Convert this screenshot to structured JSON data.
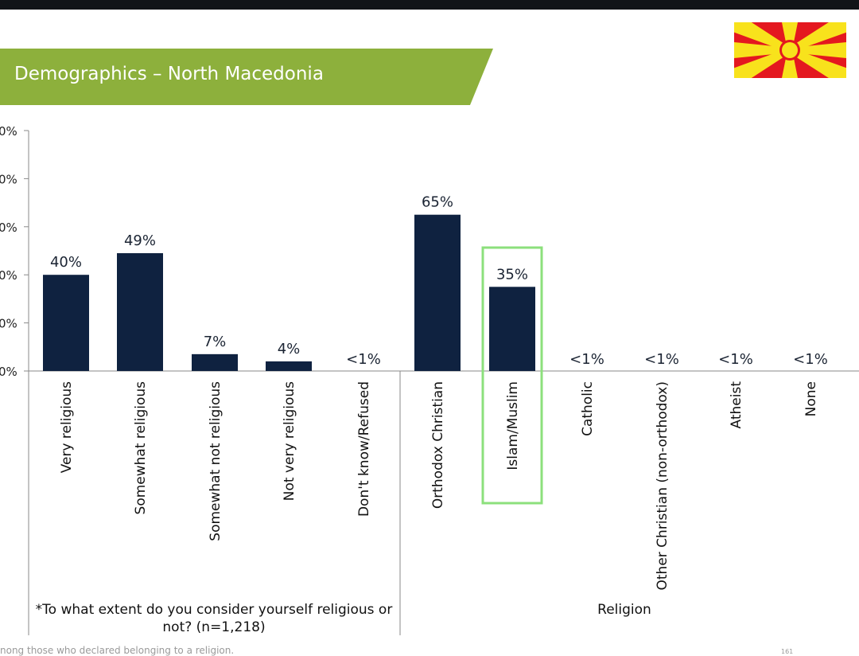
{
  "header": {
    "title": "Demographics – North Macedonia",
    "banner_color": "#8DB03C"
  },
  "flag": {
    "name": "north-macedonia-flag",
    "red": "#E4181F",
    "yellow": "#F8E21C"
  },
  "chart_data": [
    {
      "type": "bar",
      "categories": [
        "Very religious",
        "Somewhat religious",
        "Somewhat not religious",
        "Not very religious",
        "Don't know/Refused"
      ],
      "values": [
        40,
        49,
        7,
        4,
        0
      ],
      "data_labels": [
        "40%",
        "49%",
        "7%",
        "4%",
        "<1%"
      ],
      "group_label": "*To what extent do you consider yourself religious or not? (n=1,218)",
      "y_ticks": [
        "0%",
        "0%",
        "0%",
        "0%",
        "0%",
        "0%"
      ],
      "ylim": [
        0,
        100
      ],
      "bar_color": "#0F2240"
    },
    {
      "type": "bar",
      "categories": [
        "Orthodox Christian",
        "Islam/Muslim",
        "Catholic",
        "Other Christian (non-orthodox)",
        "Atheist",
        "None"
      ],
      "values": [
        65,
        35,
        0,
        0,
        0,
        0
      ],
      "data_labels": [
        "65%",
        "35%",
        "<1%",
        "<1%",
        "<1%",
        "<1%"
      ],
      "group_label": "Religion",
      "highlight": "Islam/Muslim",
      "highlight_color": "#8CE07C",
      "ylim": [
        0,
        100
      ],
      "bar_color": "#0F2240"
    }
  ],
  "footer": {
    "note": "nong those who declared belonging to a religion.",
    "page_number": "161"
  }
}
